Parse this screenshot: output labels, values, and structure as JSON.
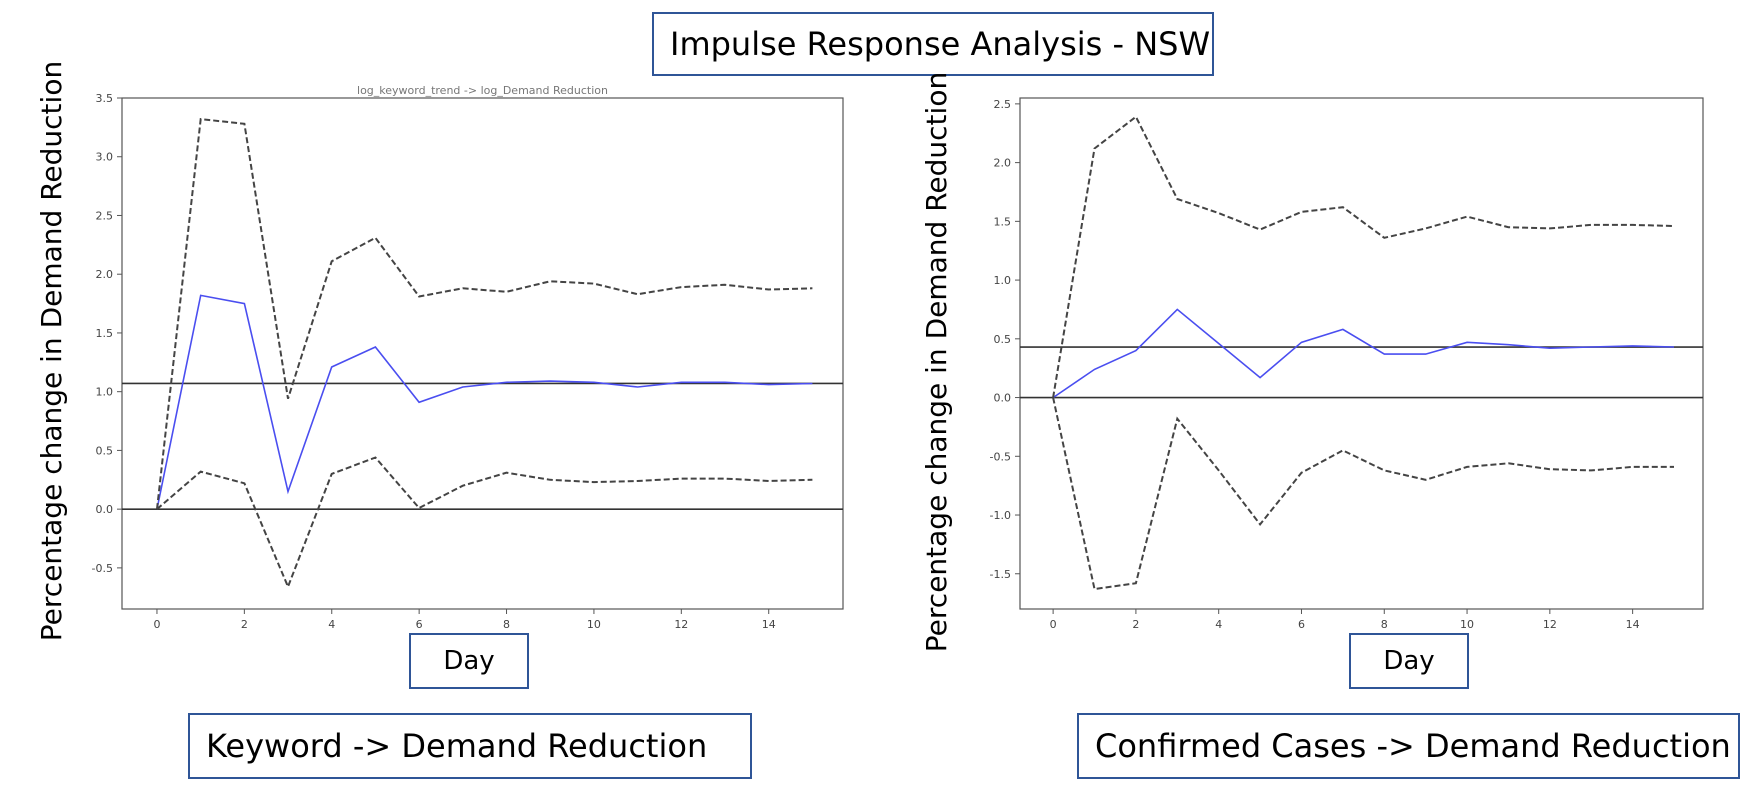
{
  "title": "Impulse Response Analysis - NSW",
  "colors": {
    "response": "#4a4ef0",
    "bands": "#444444",
    "reference": "#333333",
    "box_border": "#2f5597"
  },
  "chart_data": [
    {
      "type": "line",
      "title": "log_keyword_trend -> log_Demand Reduction",
      "caption": "Keyword -> Demand Reduction",
      "xlabel": "Day",
      "ylabel": "Percentage change in Demand Reduction",
      "xlim": [
        -0.8,
        15.7
      ],
      "ylim": [
        -0.85,
        3.5
      ],
      "xticks": [
        0,
        2,
        4,
        6,
        8,
        10,
        12,
        14
      ],
      "yticks": [
        -0.5,
        0.0,
        0.5,
        1.0,
        1.5,
        2.0,
        2.5,
        3.0,
        3.5
      ],
      "ytick_labels": [
        "-0.5",
        "0.0",
        "0.5",
        "1.0",
        "1.5",
        "2.0",
        "2.5",
        "3.0",
        "3.5"
      ],
      "hlines": [
        0.0,
        1.07
      ],
      "x": [
        0,
        1,
        2,
        3,
        4,
        5,
        6,
        7,
        8,
        9,
        10,
        11,
        12,
        13,
        14,
        15
      ],
      "series": [
        {
          "role": "response",
          "values": [
            0.0,
            1.82,
            1.75,
            0.15,
            1.21,
            1.38,
            0.91,
            1.04,
            1.08,
            1.09,
            1.08,
            1.04,
            1.08,
            1.08,
            1.06,
            1.07
          ]
        },
        {
          "role": "upper",
          "values": [
            0.0,
            3.32,
            3.28,
            0.94,
            2.11,
            2.31,
            1.81,
            1.88,
            1.85,
            1.94,
            1.92,
            1.83,
            1.89,
            1.91,
            1.87,
            1.88
          ]
        },
        {
          "role": "lower",
          "values": [
            0.0,
            0.32,
            0.22,
            -0.66,
            0.3,
            0.44,
            0.01,
            0.2,
            0.31,
            0.25,
            0.23,
            0.24,
            0.26,
            0.26,
            0.24,
            0.25
          ]
        }
      ]
    },
    {
      "type": "line",
      "caption": "Confirmed Cases -> Demand Reduction",
      "xlabel": "Day",
      "ylabel": "Percentage change in Demand Reduction",
      "xlim": [
        -0.8,
        15.7
      ],
      "ylim": [
        -1.8,
        2.55
      ],
      "xticks": [
        0,
        2,
        4,
        6,
        8,
        10,
        12,
        14
      ],
      "yticks": [
        -1.5,
        -1.0,
        -0.5,
        0.0,
        0.5,
        1.0,
        1.5,
        2.0,
        2.5
      ],
      "ytick_labels": [
        "-1.5",
        "-1.0",
        "-0.5",
        "0.0",
        "0.5",
        "1.0",
        "1.5",
        "2.0",
        "2.5"
      ],
      "hlines": [
        0.0,
        0.43
      ],
      "x": [
        0,
        1,
        2,
        3,
        4,
        5,
        6,
        7,
        8,
        9,
        10,
        11,
        12,
        13,
        14,
        15
      ],
      "series": [
        {
          "role": "response",
          "values": [
            0.0,
            0.24,
            0.4,
            0.75,
            0.46,
            0.17,
            0.47,
            0.58,
            0.37,
            0.37,
            0.47,
            0.45,
            0.42,
            0.43,
            0.44,
            0.43
          ]
        },
        {
          "role": "upper",
          "values": [
            0.0,
            2.12,
            2.39,
            1.69,
            1.57,
            1.43,
            1.58,
            1.62,
            1.36,
            1.44,
            1.54,
            1.45,
            1.44,
            1.47,
            1.47,
            1.46
          ]
        },
        {
          "role": "lower",
          "values": [
            0.0,
            -1.63,
            -1.58,
            -0.18,
            -0.62,
            -1.08,
            -0.64,
            -0.45,
            -0.62,
            -0.7,
            -0.59,
            -0.56,
            -0.61,
            -0.62,
            -0.59,
            -0.59
          ]
        }
      ]
    }
  ]
}
